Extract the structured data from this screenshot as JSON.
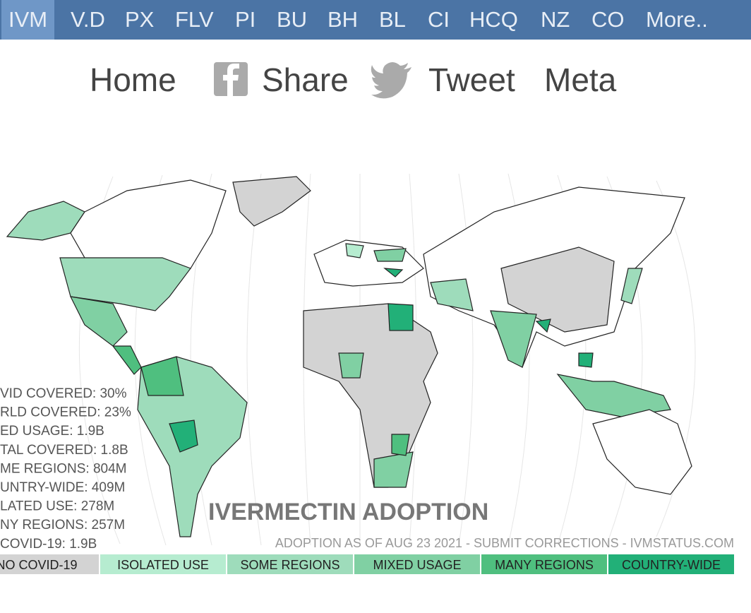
{
  "nav": {
    "tabs": [
      "IVM",
      "V.D",
      "PX",
      "FLV",
      "PI",
      "BU",
      "BH",
      "BL",
      "CI",
      "HCQ",
      "NZ",
      "CO",
      "More.."
    ],
    "active": 0
  },
  "links": [
    "Home",
    "Share",
    "Tweet",
    "Meta"
  ],
  "map": {
    "title": "IVERMECTIN ADOPTION",
    "note": "ADOPTION AS OF AUG 23 2021 - SUBMIT CORRECTIONS - IVMSTATUS.COM",
    "stats": [
      "VID COVERED: 30%",
      "RLD COVERED: 23%",
      "ED USAGE: 1.9B",
      "TAL COVERED: 1.8B",
      "ME REGIONS: 804M",
      "UNTRY-WIDE: 409M",
      "LATED USE: 278M",
      "NY REGIONS: 257M",
      "COVID-19: 1.9B"
    ],
    "legend": [
      {
        "label": "NO COVID-19",
        "color": "#d3d3d3"
      },
      {
        "label": "ISOLATED USE",
        "color": "#b6ecd0"
      },
      {
        "label": "SOME REGIONS",
        "color": "#9edcbb"
      },
      {
        "label": "MIXED USAGE",
        "color": "#80d0a3"
      },
      {
        "label": "MANY REGIONS",
        "color": "#4fbf7f"
      },
      {
        "label": "COUNTRY-WIDE",
        "color": "#22b078"
      }
    ]
  }
}
